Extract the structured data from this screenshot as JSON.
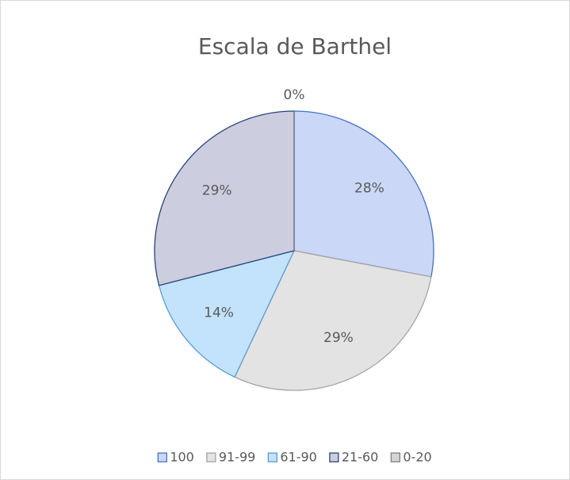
{
  "chart_data": {
    "type": "pie",
    "title": "Escala de Barthel",
    "categories": [
      "100",
      "91-99",
      "61-90",
      "21-60",
      "0-20"
    ],
    "values": [
      28,
      29,
      14,
      29,
      0
    ],
    "value_labels": [
      "28%",
      "29%",
      "14%",
      "29%",
      "0%"
    ],
    "colors": [
      "#cad7f7",
      "#e3e3e3",
      "#c3e2fb",
      "#cdcde0",
      "#d4d4d4"
    ],
    "edge_colors": [
      "#4472c4",
      "#a5a5a5",
      "#5b9bd5",
      "#264478",
      "#7f7f7f"
    ],
    "legend": "bottom"
  }
}
